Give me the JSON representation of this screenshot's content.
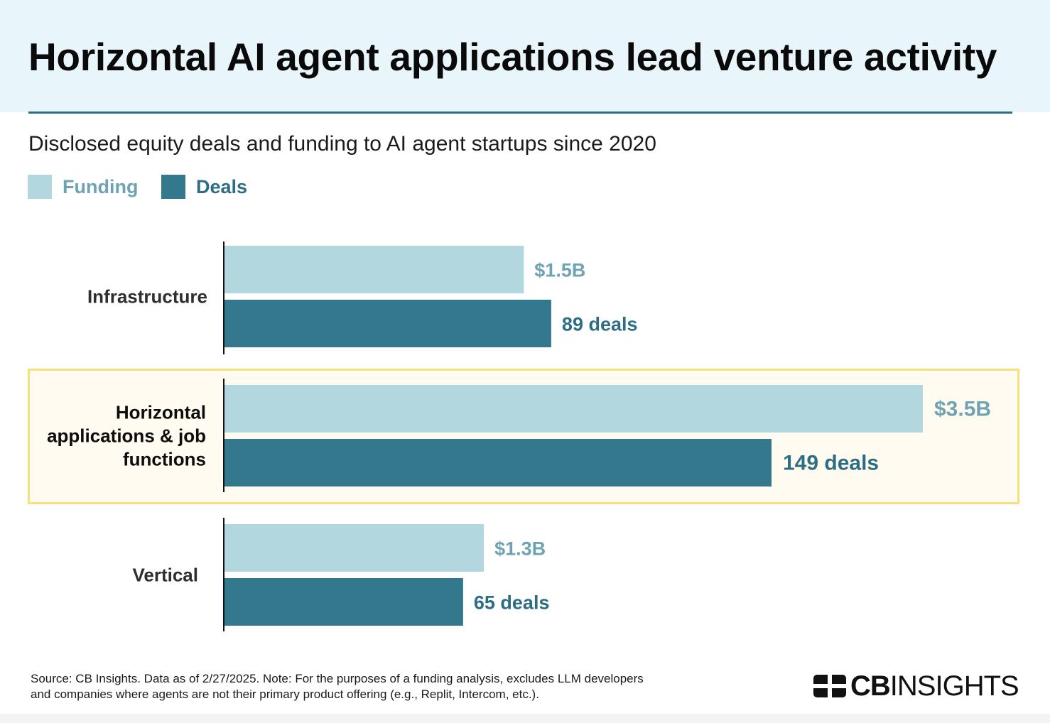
{
  "header": {
    "title": "Horizontal AI agent applications lead venture activity"
  },
  "colors": {
    "header_bg": "#e8f6fc",
    "rule": "#2f6f86",
    "funding": "#b3d7df",
    "deals": "#34788e",
    "funding_label": "#6fa3b4",
    "deals_label": "#2d6e84",
    "highlight_border": "#f6e27a",
    "highlight_bg": "#fffbf1"
  },
  "chart_data": {
    "type": "bar",
    "orientation": "horizontal",
    "title": "Horizontal AI agent applications lead venture activity",
    "subtitle": "Disclosed equity deals and funding to AI agent startups since 2020",
    "legend": {
      "funding": "Funding",
      "deals": "Deals",
      "placement": "top-left"
    },
    "categories": [
      "Infrastructure",
      "Horizontal applications & job functions",
      "Vertical"
    ],
    "category_lines": [
      [
        "Infrastructure"
      ],
      [
        "Horizontal",
        "applications & job",
        "functions"
      ],
      [
        "Vertical"
      ]
    ],
    "highlighted_category": "Horizontal applications & job functions",
    "series": [
      {
        "name": "Funding",
        "unit": "$B",
        "values": [
          1.5,
          3.5,
          1.3
        ],
        "labels": [
          "$1.5B",
          "$3.5B",
          "$1.3B"
        ]
      },
      {
        "name": "Deals",
        "unit": "deals",
        "values": [
          89,
          149,
          65
        ],
        "labels": [
          "89 deals",
          "149 deals",
          "65 deals"
        ]
      }
    ],
    "xlim_funding": [
      0,
      3.5
    ],
    "xlim_deals": [
      0,
      149
    ],
    "grid": false
  },
  "footer": {
    "note_line1": "Source: CB Insights. Data as of 2/27/2025. Note: For the purposes of a funding analysis, excludes LLM developers",
    "note_line2": "and companies where agents are not their primary product offering (e.g., Replit, Intercom, etc.).",
    "logo_bold": "CB",
    "logo_light": "INSIGHTS",
    "logo_icon": "cbinsights-logo-icon"
  }
}
